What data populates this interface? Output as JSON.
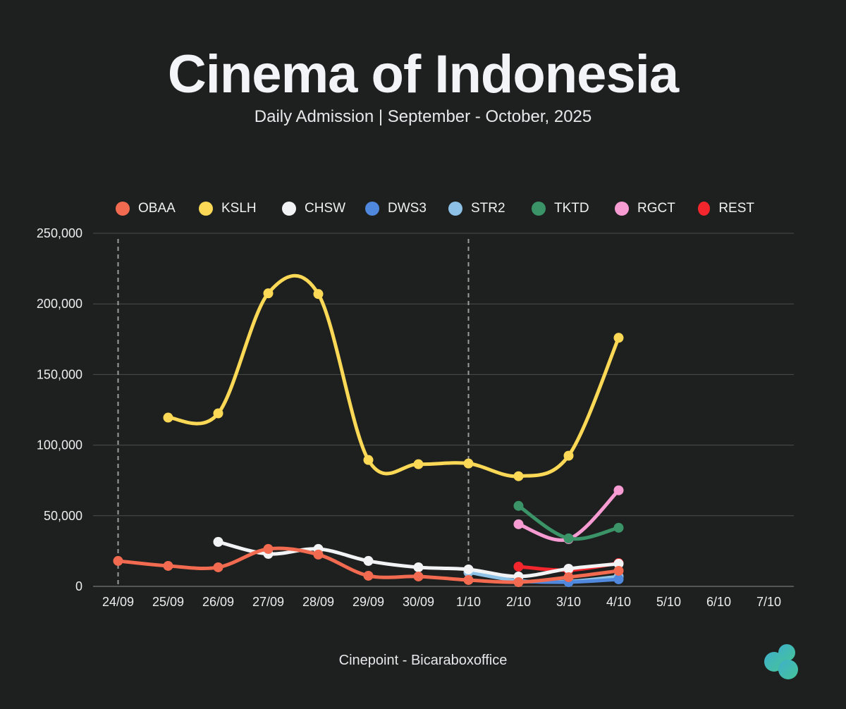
{
  "header": {
    "title": "Cinema of Indonesia",
    "subtitle": "Daily Admission | September - October, 2025"
  },
  "footer": {
    "source": "Cinepoint - Bicaraboxoffice"
  },
  "chart_data": {
    "type": "line",
    "title": "Cinema of Indonesia",
    "subtitle": "Daily Admission | September - October, 2025",
    "xlabel": "",
    "ylabel": "",
    "categories": [
      "24/09",
      "25/09",
      "26/09",
      "27/09",
      "28/09",
      "29/09",
      "30/09",
      "1/10",
      "2/10",
      "3/10",
      "4/10",
      "5/10",
      "6/10",
      "7/10"
    ],
    "ylim": [
      0,
      250000
    ],
    "yticks": [
      0,
      50000,
      100000,
      150000,
      200000,
      250000
    ],
    "ytick_labels": [
      "0",
      "50,000",
      "100,000",
      "150,000",
      "200,000",
      "250,000"
    ],
    "grid": true,
    "legend_position": "top",
    "reference_lines": [
      "24/09",
      "1/10"
    ],
    "series": [
      {
        "name": "OBAA",
        "color": "#f26b50",
        "values": [
          18000,
          14500,
          13500,
          26500,
          22500,
          7500,
          7000,
          4500,
          3000,
          6500,
          11000,
          null,
          null,
          null
        ]
      },
      {
        "name": "KSLH",
        "color": "#fbd855",
        "values": [
          null,
          119500,
          122500,
          207500,
          207000,
          89500,
          86500,
          87000,
          78000,
          92500,
          176000,
          null,
          null,
          null
        ]
      },
      {
        "name": "CHSW",
        "color": "#f2f3f5",
        "values": [
          null,
          null,
          31500,
          23000,
          26500,
          18000,
          13500,
          12000,
          7000,
          12500,
          16000,
          null,
          null,
          null
        ]
      },
      {
        "name": "DWS3",
        "color": "#4f88dc",
        "values": [
          null,
          null,
          null,
          null,
          null,
          null,
          null,
          null,
          3500,
          3000,
          5000,
          null,
          null,
          null
        ]
      },
      {
        "name": "STR2",
        "color": "#8ec1e6",
        "values": [
          null,
          null,
          null,
          null,
          null,
          null,
          null,
          10000,
          4000,
          3500,
          7000,
          null,
          null,
          null
        ]
      },
      {
        "name": "TKTD",
        "color": "#3a9467",
        "values": [
          null,
          null,
          null,
          null,
          null,
          null,
          null,
          null,
          57000,
          34000,
          41500,
          null,
          null,
          null
        ]
      },
      {
        "name": "RGCT",
        "color": "#f79bd3",
        "values": [
          null,
          null,
          null,
          null,
          null,
          null,
          null,
          null,
          44000,
          33500,
          68000,
          null,
          null,
          null
        ]
      },
      {
        "name": "REST",
        "color": "#f2262c",
        "values": [
          null,
          null,
          null,
          null,
          null,
          null,
          null,
          null,
          14000,
          11500,
          16500,
          null,
          null,
          null
        ]
      }
    ]
  }
}
